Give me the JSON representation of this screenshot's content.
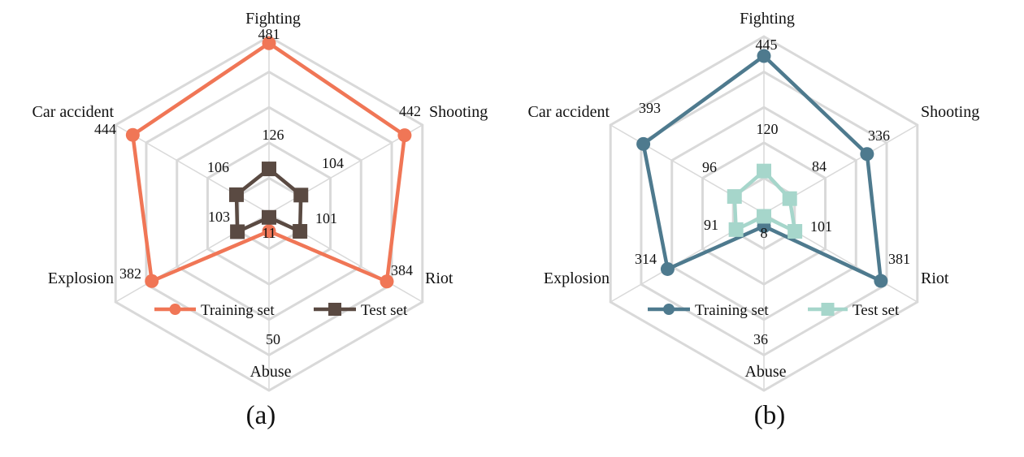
{
  "chart_data": [
    {
      "type": "radar",
      "caption": "(a)",
      "axes": [
        "Fighting",
        "Shooting",
        "Riot",
        "Abuse",
        "Explosion",
        "Car accident"
      ],
      "rmax": 500,
      "grid": true,
      "legend_position": "bottom",
      "series": [
        {
          "name": "Training set",
          "values": [
            481,
            442,
            384,
            50,
            382,
            444
          ],
          "color": "#F07656",
          "marker": "circle"
        },
        {
          "name": "Test set",
          "values": [
            126,
            104,
            101,
            11,
            103,
            106
          ],
          "color": "#5A4A42",
          "marker": "square"
        }
      ]
    },
    {
      "type": "radar",
      "caption": "(b)",
      "axes": [
        "Fighting",
        "Shooting",
        "Riot",
        "Abuse",
        "Explosion",
        "Car accident"
      ],
      "rmax": 500,
      "grid": true,
      "legend_position": "bottom",
      "series": [
        {
          "name": "Training set",
          "values": [
            445,
            336,
            381,
            36,
            314,
            393
          ],
          "color": "#4E7A8E",
          "marker": "circle"
        },
        {
          "name": "Test set",
          "values": [
            120,
            84,
            101,
            8,
            91,
            96
          ],
          "color": "#A6D6CB",
          "marker": "square"
        }
      ]
    }
  ]
}
